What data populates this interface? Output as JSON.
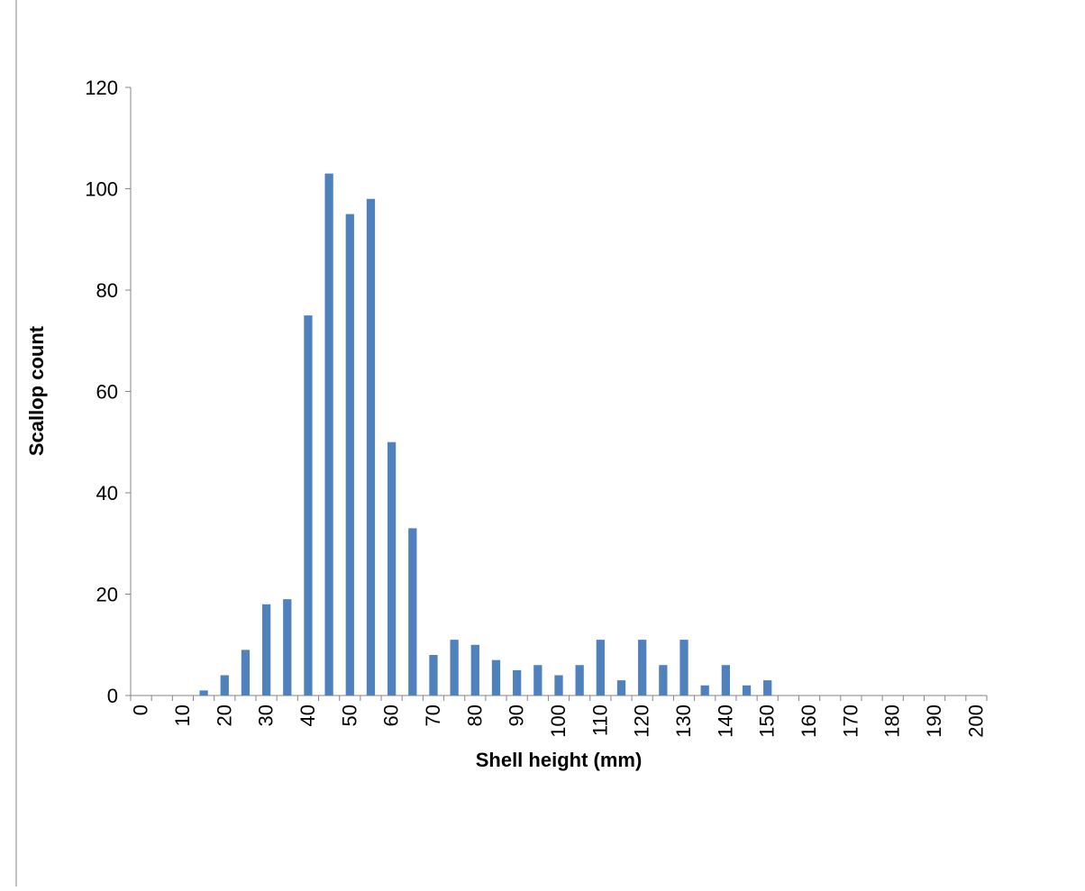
{
  "chart_data": {
    "type": "bar",
    "x_label": "Shell height (mm)",
    "y_label": "Scallop count",
    "categories": [
      "0",
      null,
      "10",
      null,
      "20",
      null,
      "30",
      null,
      "40",
      null,
      "50",
      null,
      "60",
      null,
      "70",
      null,
      "80",
      null,
      "90",
      null,
      "100",
      null,
      "110",
      null,
      "120",
      null,
      "130",
      null,
      "140",
      null,
      "150",
      null,
      "160",
      null,
      "170",
      null,
      "180",
      null,
      "190",
      null,
      "200"
    ],
    "values": [
      0,
      0,
      0,
      1,
      4,
      9,
      18,
      19,
      75,
      103,
      95,
      98,
      50,
      33,
      8,
      11,
      10,
      7,
      5,
      6,
      4,
      6,
      11,
      3,
      11,
      6,
      11,
      2,
      6,
      2,
      3,
      0,
      0,
      0,
      0,
      0,
      0,
      0,
      0,
      0,
      0
    ],
    "color": "#4f81bd",
    "ylim": [
      0,
      120
    ],
    "yticks": [
      0,
      20,
      40,
      60,
      80,
      100,
      120
    ],
    "grid": false
  }
}
